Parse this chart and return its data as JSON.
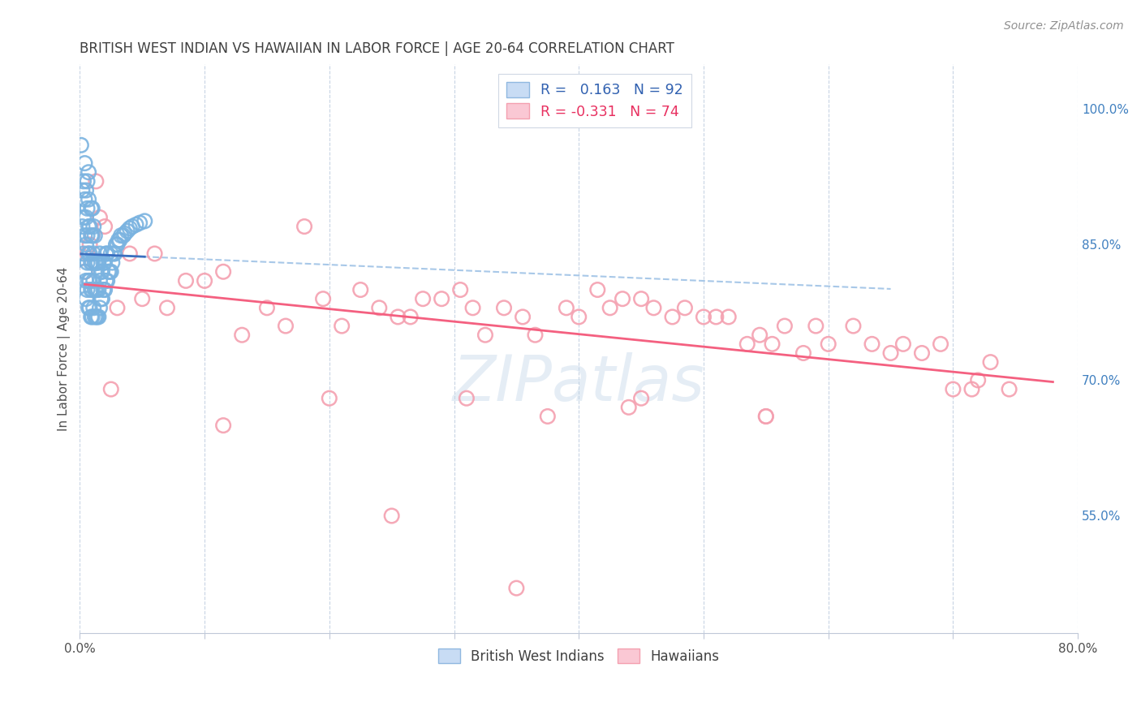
{
  "title": "BRITISH WEST INDIAN VS HAWAIIAN IN LABOR FORCE | AGE 20-64 CORRELATION CHART",
  "source": "Source: ZipAtlas.com",
  "ylabel": "In Labor Force | Age 20-64",
  "xlim": [
    0.0,
    0.8
  ],
  "ylim": [
    0.42,
    1.05
  ],
  "ytick_labels": [
    "55.0%",
    "70.0%",
    "85.0%",
    "100.0%"
  ],
  "ytick_values": [
    0.55,
    0.7,
    0.85,
    1.0
  ],
  "blue_R": 0.163,
  "blue_N": 92,
  "pink_R": -0.331,
  "pink_N": 74,
  "blue_color": "#7ab3e0",
  "pink_color": "#f4a0b0",
  "blue_line_color": "#3a6fbf",
  "pink_line_color": "#f46080",
  "blue_dash_color": "#a8c8e8",
  "background_color": "#ffffff",
  "grid_color": "#c8d4e4",
  "title_color": "#404040",
  "axis_label_color": "#505050",
  "tick_color_bottom": "#505050",
  "tick_color_right": "#4080c0",
  "watermark": "ZIPatlas",
  "blue_scatter_x": [
    0.001,
    0.002,
    0.002,
    0.003,
    0.003,
    0.003,
    0.004,
    0.004,
    0.004,
    0.004,
    0.005,
    0.005,
    0.005,
    0.005,
    0.005,
    0.006,
    0.006,
    0.006,
    0.006,
    0.006,
    0.007,
    0.007,
    0.007,
    0.007,
    0.007,
    0.007,
    0.008,
    0.008,
    0.008,
    0.008,
    0.009,
    0.009,
    0.009,
    0.009,
    0.009,
    0.01,
    0.01,
    0.01,
    0.01,
    0.01,
    0.011,
    0.011,
    0.011,
    0.011,
    0.012,
    0.012,
    0.012,
    0.012,
    0.013,
    0.013,
    0.013,
    0.014,
    0.014,
    0.014,
    0.015,
    0.015,
    0.015,
    0.016,
    0.016,
    0.016,
    0.017,
    0.017,
    0.018,
    0.018,
    0.019,
    0.019,
    0.02,
    0.02,
    0.021,
    0.021,
    0.022,
    0.022,
    0.023,
    0.024,
    0.025,
    0.025,
    0.026,
    0.027,
    0.028,
    0.029,
    0.03,
    0.031,
    0.032,
    0.033,
    0.035,
    0.036,
    0.038,
    0.04,
    0.042,
    0.045,
    0.048,
    0.052
  ],
  "blue_scatter_y": [
    0.96,
    0.87,
    0.91,
    0.84,
    0.88,
    0.92,
    0.82,
    0.86,
    0.9,
    0.94,
    0.81,
    0.85,
    0.88,
    0.91,
    0.79,
    0.8,
    0.83,
    0.86,
    0.89,
    0.92,
    0.78,
    0.81,
    0.84,
    0.87,
    0.9,
    0.93,
    0.78,
    0.81,
    0.84,
    0.87,
    0.77,
    0.8,
    0.83,
    0.86,
    0.89,
    0.77,
    0.8,
    0.83,
    0.86,
    0.89,
    0.78,
    0.81,
    0.84,
    0.87,
    0.77,
    0.8,
    0.83,
    0.86,
    0.77,
    0.8,
    0.83,
    0.77,
    0.8,
    0.83,
    0.77,
    0.8,
    0.83,
    0.78,
    0.81,
    0.84,
    0.79,
    0.82,
    0.79,
    0.82,
    0.8,
    0.83,
    0.8,
    0.83,
    0.81,
    0.84,
    0.81,
    0.84,
    0.82,
    0.82,
    0.82,
    0.84,
    0.83,
    0.84,
    0.84,
    0.85,
    0.85,
    0.855,
    0.855,
    0.86,
    0.86,
    0.862,
    0.865,
    0.868,
    0.87,
    0.872,
    0.874,
    0.876
  ],
  "pink_scatter_x": [
    0.004,
    0.006,
    0.008,
    0.01,
    0.013,
    0.016,
    0.02,
    0.025,
    0.03,
    0.04,
    0.05,
    0.06,
    0.07,
    0.085,
    0.1,
    0.115,
    0.13,
    0.15,
    0.165,
    0.18,
    0.195,
    0.21,
    0.225,
    0.24,
    0.255,
    0.265,
    0.275,
    0.29,
    0.305,
    0.315,
    0.325,
    0.34,
    0.355,
    0.365,
    0.375,
    0.39,
    0.4,
    0.415,
    0.425,
    0.435,
    0.45,
    0.46,
    0.475,
    0.485,
    0.5,
    0.51,
    0.52,
    0.535,
    0.545,
    0.555,
    0.565,
    0.58,
    0.59,
    0.6,
    0.62,
    0.635,
    0.65,
    0.66,
    0.675,
    0.69,
    0.7,
    0.715,
    0.72,
    0.73,
    0.745,
    0.115,
    0.2,
    0.31,
    0.44,
    0.55,
    0.25,
    0.35,
    0.45,
    0.55
  ],
  "pink_scatter_y": [
    0.82,
    0.84,
    0.85,
    0.86,
    0.92,
    0.88,
    0.87,
    0.69,
    0.78,
    0.84,
    0.79,
    0.84,
    0.78,
    0.81,
    0.81,
    0.82,
    0.75,
    0.78,
    0.76,
    0.87,
    0.79,
    0.76,
    0.8,
    0.78,
    0.77,
    0.77,
    0.79,
    0.79,
    0.8,
    0.78,
    0.75,
    0.78,
    0.77,
    0.75,
    0.66,
    0.78,
    0.77,
    0.8,
    0.78,
    0.79,
    0.79,
    0.78,
    0.77,
    0.78,
    0.77,
    0.77,
    0.77,
    0.74,
    0.75,
    0.74,
    0.76,
    0.73,
    0.76,
    0.74,
    0.76,
    0.74,
    0.73,
    0.74,
    0.73,
    0.74,
    0.69,
    0.69,
    0.7,
    0.72,
    0.69,
    0.65,
    0.68,
    0.68,
    0.67,
    0.66,
    0.55,
    0.47,
    0.68,
    0.66
  ]
}
